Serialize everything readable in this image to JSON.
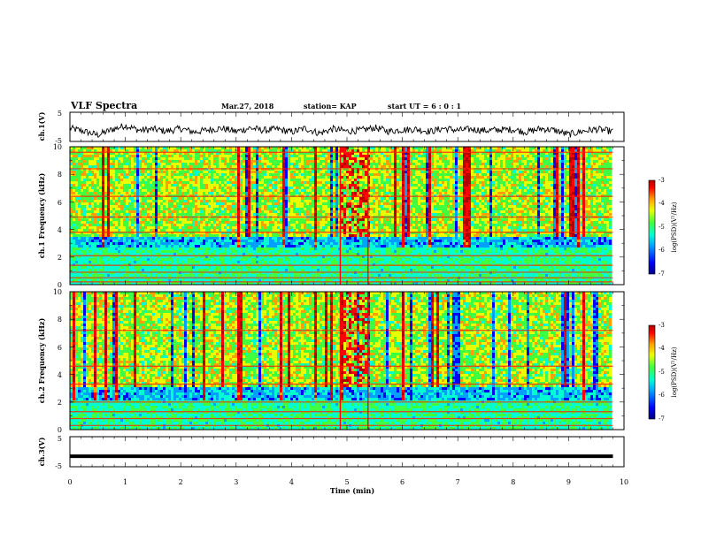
{
  "header": {
    "title": "VLF Spectra",
    "date": "Mar.27, 2018",
    "station": "station= KAP",
    "start": "start  UT =  6 : 0 : 1"
  },
  "chart_data": [
    {
      "type": "line",
      "panel": "ch1-waveform",
      "ylabel": "ch.1(V)",
      "x_range": [
        0,
        10
      ],
      "ylim": [
        -5,
        5
      ],
      "y_ticks": [
        "5",
        "-5"
      ],
      "x": [
        0,
        0.25,
        0.5,
        0.75,
        1,
        1.25,
        1.5,
        1.75,
        2,
        2.25,
        2.5,
        2.75,
        3,
        3.25,
        3.5,
        3.75,
        4,
        4.25,
        4.5,
        4.75,
        5,
        5.25,
        5.5,
        5.75,
        6,
        6.25,
        6.5,
        6.75,
        7,
        7.25,
        7.5,
        7.75,
        8,
        8.25,
        8.5,
        8.75,
        9,
        9.25,
        9.5,
        9.8
      ],
      "values": [
        -0.5,
        -1.5,
        -2.8,
        -1,
        0.5,
        -1.2,
        -0.8,
        -1.5,
        -0.6,
        -1.8,
        -1,
        -0.5,
        -1.6,
        -0.4,
        -1.2,
        -0.8,
        -1.8,
        -0.5,
        -2.2,
        -0.7,
        -1.5,
        -1.2,
        -0.3,
        -1.5,
        -1,
        -0.8,
        -1.6,
        -0.5,
        -1.2,
        -0.8,
        -1.3,
        -1,
        -0.9,
        -1.8,
        -0.6,
        -1.2,
        -2.6,
        -1.5,
        -0.8,
        -1.6
      ]
    },
    {
      "type": "heatmap",
      "panel": "ch1-spectrogram",
      "ylabel": "ch.1 Frequency (kHz)",
      "x_range": [
        0,
        10
      ],
      "ylim": [
        0,
        10
      ],
      "y_ticks": [
        "0",
        "2",
        "4",
        "6",
        "8",
        "10"
      ],
      "colorbar": {
        "range": [
          -7,
          -3
        ],
        "ticks": [
          "-3",
          "-4",
          "-5",
          "-6",
          "-7"
        ],
        "label": "log(PSD)(V²/Hz)"
      },
      "lines_khz": [
        0.2,
        0.5,
        0.9,
        1.4,
        2.1,
        3.8,
        4.9,
        6.4,
        8.4,
        9.6
      ],
      "dark_band_khz": [
        2.6,
        3.4
      ],
      "burst_interval_min": [
        4.88,
        5.38
      ]
    },
    {
      "type": "heatmap",
      "panel": "ch2-spectrogram",
      "ylabel": "ch.2 Frequency (kHz)",
      "x_range": [
        0,
        10
      ],
      "ylim": [
        0,
        10
      ],
      "y_ticks": [
        "0",
        "2",
        "4",
        "6",
        "8",
        "10"
      ],
      "colorbar": {
        "range": [
          -7,
          -3
        ],
        "ticks": [
          "-3",
          "-4",
          "-5",
          "-6",
          "-7"
        ],
        "label": "log(PSD)(V²/Hz)"
      },
      "lines_khz": [
        0.3,
        0.8,
        1.3,
        2.0,
        3.3,
        4.6,
        7.2
      ],
      "dark_band_khz": [
        2.2,
        3.0
      ],
      "burst_interval_min": [
        4.88,
        5.38
      ]
    },
    {
      "type": "line",
      "panel": "ch3-waveform",
      "ylabel": "ch.3(V)",
      "xlabel": "Time  (min)",
      "x_range": [
        0,
        10
      ],
      "ylim": [
        -5,
        5
      ],
      "y_ticks": [
        "5",
        "-5"
      ],
      "x_ticks": [
        "0",
        "1",
        "2",
        "3",
        "4",
        "5",
        "6",
        "7",
        "8",
        "9",
        "10"
      ],
      "x": [
        0,
        9.8
      ],
      "values": [
        -1.5,
        -1.5
      ]
    }
  ],
  "colors": {
    "scale": [
      "#000080",
      "#0000ff",
      "#00a0ff",
      "#00ffd0",
      "#40ff40",
      "#e8ff00",
      "#ffa000",
      "#ff0000",
      "#b00000"
    ]
  }
}
